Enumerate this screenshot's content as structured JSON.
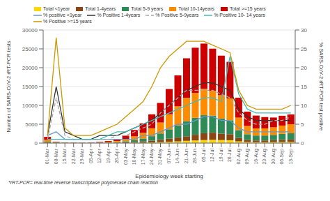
{
  "chart_data": {
    "type": "bar",
    "stacked": true,
    "grid": true,
    "legend": "upper left",
    "xlabel": "Epidemiology week starting",
    "ylabel": "Number of SARS-CoV-2 rRT-PCR tests",
    "y2label": "% SARS-CoV-2 rRT-PCR test positive",
    "annotations": [
      "*rRT-PCR= real-time reverse transcriptase polymerase chain reaction"
    ],
    "categories": [
      "01-Mar",
      "08-Mar",
      "15-Mar",
      "22-Mar",
      "29-Mar",
      "05-Apr",
      "12-Apr",
      "19-Apr",
      "26-Apr",
      "03-May",
      "10-May",
      "17-May",
      "24-May",
      "31-May",
      "07-Jun",
      "14-Jun",
      "21-Jun",
      "28-Jun",
      "05-Jul",
      "12-Jul",
      "19-Jul",
      "26-Jul",
      "02-Aug",
      "09-Aug",
      "16-Aug",
      "23-Aug",
      "30-Aug",
      "06-Sep",
      "13-Sep"
    ],
    "ylim": [
      0,
      30000
    ],
    "yticks": [
      0,
      5000,
      10000,
      15000,
      20000,
      25000,
      30000
    ],
    "y2lim": [
      0,
      30
    ],
    "y2ticks": [
      0,
      5,
      10,
      15,
      20,
      25,
      30
    ],
    "series": [
      {
        "name": "Total <1year",
        "type": "bar",
        "color": "#FFD700",
        "values": [
          50,
          30,
          10,
          10,
          10,
          10,
          20,
          20,
          30,
          50,
          80,
          120,
          180,
          250,
          350,
          450,
          600,
          700,
          800,
          850,
          800,
          750,
          450,
          300,
          250,
          250,
          280,
          300,
          320
        ]
      },
      {
        "name": "Total 1-4years",
        "type": "bar",
        "color": "#8B4513",
        "values": [
          100,
          50,
          20,
          20,
          15,
          20,
          30,
          50,
          70,
          120,
          200,
          300,
          450,
          600,
          800,
          1000,
          1200,
          1500,
          1800,
          1900,
          1700,
          1600,
          900,
          550,
          450,
          450,
          500,
          550,
          580
        ]
      },
      {
        "name": "Total 5-9 years",
        "type": "bar",
        "color": "#2E8B57",
        "values": [
          200,
          80,
          40,
          30,
          25,
          40,
          70,
          100,
          150,
          300,
          500,
          800,
          1200,
          1700,
          2500,
          3200,
          4000,
          4500,
          4800,
          4500,
          4000,
          3700,
          2100,
          1500,
          1300,
          1300,
          1400,
          1600,
          1700
        ]
      },
      {
        "name": "Total 10-14years",
        "type": "bar",
        "color": "#FF8C00",
        "values": [
          500,
          100,
          60,
          50,
          40,
          60,
          120,
          200,
          300,
          600,
          1000,
          1500,
          2100,
          2900,
          4000,
          5100,
          6200,
          6600,
          7000,
          6600,
          6200,
          5800,
          3300,
          2200,
          1900,
          1900,
          2000,
          2200,
          2400
        ]
      },
      {
        "name": "Total >=15 years",
        "type": "bar",
        "color": "#CC0000",
        "values": [
          800,
          100,
          50,
          40,
          30,
          50,
          100,
          200,
          350,
          900,
          1700,
          2500,
          3700,
          5200,
          6700,
          8200,
          10500,
          12000,
          12000,
          11200,
          10500,
          9700,
          5300,
          3800,
          3400,
          3000,
          2600,
          2600,
          2600
        ]
      },
      {
        "name": "% positive <1year",
        "type": "line",
        "axis": "y2",
        "color": "#6699CC",
        "line_style": "solid",
        "values": [
          2,
          3,
          1,
          1,
          1,
          1,
          1,
          1,
          1,
          1,
          1,
          2,
          2,
          3,
          4,
          5,
          5,
          6,
          7,
          7,
          6,
          6,
          4,
          3,
          3,
          3,
          3,
          3,
          3
        ]
      },
      {
        "name": "% Positive 1-4years",
        "type": "line",
        "axis": "y2",
        "color": "#333333",
        "line_style": "solid",
        "values": [
          2,
          15,
          3,
          2,
          1,
          1,
          2,
          2,
          2,
          3,
          4,
          5,
          6,
          8,
          10,
          12,
          14,
          15,
          16,
          16,
          15,
          14,
          9,
          7,
          6,
          6,
          6,
          6,
          6
        ]
      },
      {
        "name": "% Positive 5-9years",
        "type": "line",
        "axis": "y2",
        "color": "#AAAAAA",
        "line_style": "dashed",
        "values": [
          1,
          12,
          2,
          1,
          1,
          1,
          1,
          1,
          2,
          2,
          3,
          4,
          5,
          8,
          10,
          12,
          14,
          14,
          14,
          14,
          13,
          12,
          8,
          6,
          5,
          5,
          6,
          6,
          7
        ]
      },
      {
        "name": "% Positive 10- 14 years",
        "type": "line",
        "axis": "y2",
        "color": "#44BBBB",
        "line_style": "solid",
        "values": [
          1,
          1,
          1,
          1,
          1,
          1,
          1,
          2,
          3,
          3,
          4,
          5,
          6,
          7,
          8,
          9,
          10,
          11,
          12,
          12,
          11,
          23,
          13,
          9,
          8,
          8,
          8,
          8,
          8
        ]
      },
      {
        "name": "% Positive >=15 years",
        "type": "line",
        "axis": "y2",
        "color": "#CC9900",
        "line_style": "solid",
        "values": [
          2,
          28,
          4,
          2,
          2,
          2,
          3,
          4,
          5,
          7,
          9,
          11,
          15,
          20,
          23,
          25,
          27,
          27,
          27,
          26,
          25,
          24,
          14,
          10,
          9,
          9,
          9,
          9,
          10
        ]
      }
    ]
  }
}
